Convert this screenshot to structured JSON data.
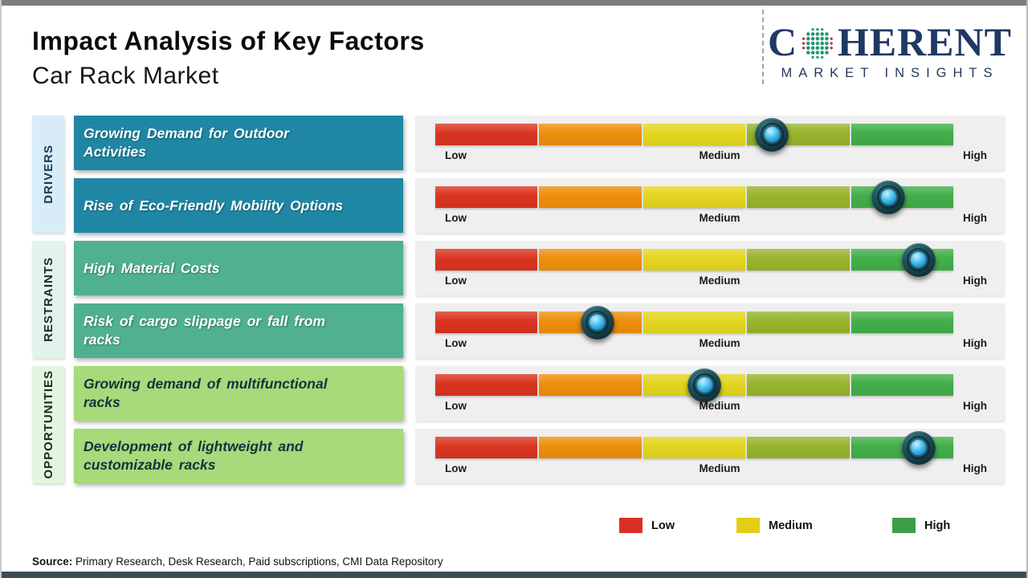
{
  "page": {
    "title": "Impact Analysis of Key Factors",
    "subtitle": "Car Rack Market",
    "source_label": "Source:",
    "source_text": " Primary Research, Desk Research, Paid subscriptions, CMI Data Repository"
  },
  "logo": {
    "brand_prefix": "C",
    "brand_suffix": "HERENT",
    "tagline": "MARKET INSIGHTS",
    "navy": "#1f3864",
    "globe_icon_colors": {
      "green": "#2f9e4f",
      "teal": "#1b8fa0",
      "magenta": "#c2245c"
    }
  },
  "scale": {
    "low": "Low",
    "medium": "Medium",
    "high": "High"
  },
  "segment_colors": [
    "#d93420",
    "#ee8e0b",
    "#e3d51f",
    "#97b42c",
    "#42ae4a"
  ],
  "legend": [
    {
      "label": "Low",
      "color": "#d93025"
    },
    {
      "label": "Medium",
      "color": "#e4ce15"
    },
    {
      "label": "High",
      "color": "#3e9e47"
    }
  ],
  "sections": [
    {
      "label": "DRIVERS",
      "strip_color": "#d8ecf7",
      "label_color": "#173a54",
      "box_color": "#1f87a4",
      "box_text_color": "#ffffff",
      "items": [
        {
          "text": "Growing Demand for Outdoor Activities",
          "impact_pct": 65
        },
        {
          "text": "Rise of Eco-Friendly Mobility Options",
          "impact_pct": 87.5
        }
      ]
    },
    {
      "label": "RESTRAINTS",
      "strip_color": "#e2f3ec",
      "label_color": "#12302a",
      "box_color": "#4fb191",
      "box_text_color": "#ffffff",
      "items": [
        {
          "text": "High Material Costs",
          "impact_pct": 93.3
        },
        {
          "text": "Risk of cargo slippage or fall from racks",
          "impact_pct": 31.3
        }
      ]
    },
    {
      "label": "OPPORTUNITIES",
      "strip_color": "#e4f6de",
      "label_color": "#1d2a1e",
      "box_color": "#a6da7a",
      "box_text_color": "#14323e",
      "items": [
        {
          "text": "Growing demand of multifunctional racks",
          "impact_pct": 52
        },
        {
          "text": "Development of lightweight and customizable racks",
          "impact_pct": 93.3
        }
      ]
    }
  ],
  "chart_data": {
    "type": "table",
    "title": "Impact Analysis of Key Factors",
    "subtitle": "Car Rack Market",
    "scale_labels": [
      "Low",
      "Medium",
      "High"
    ],
    "scale_range": [
      0,
      100
    ],
    "segment_colors": [
      "#d93420",
      "#ee8e0b",
      "#e3d51f",
      "#97b42c",
      "#42ae4a"
    ],
    "legend_position": "bottom-right",
    "rows": [
      {
        "category": "Drivers",
        "factor": "Growing Demand for Outdoor Activities",
        "impact_pct": 65,
        "impact_level": "Medium-High"
      },
      {
        "category": "Drivers",
        "factor": "Rise of Eco-Friendly Mobility Options",
        "impact_pct": 87.5,
        "impact_level": "High"
      },
      {
        "category": "Restraints",
        "factor": "High Material Costs",
        "impact_pct": 93.3,
        "impact_level": "High"
      },
      {
        "category": "Restraints",
        "factor": "Risk of cargo slippage or fall from racks",
        "impact_pct": 31.3,
        "impact_level": "Low-Medium"
      },
      {
        "category": "Opportunities",
        "factor": "Growing demand of multifunctional racks",
        "impact_pct": 52,
        "impact_level": "Medium"
      },
      {
        "category": "Opportunities",
        "factor": "Development of lightweight and customizable racks",
        "impact_pct": 93.3,
        "impact_level": "High"
      }
    ]
  }
}
